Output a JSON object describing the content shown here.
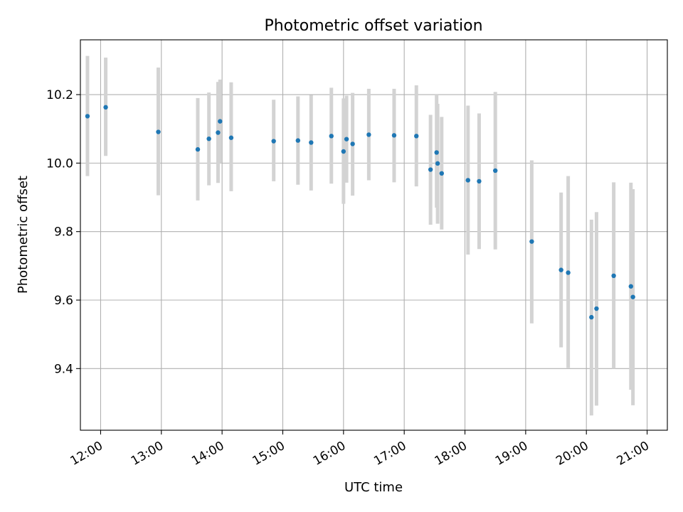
{
  "chart_data": {
    "type": "scatter",
    "title": "Photometric offset variation",
    "xlabel": "UTC time",
    "ylabel": "Photometric offset",
    "grid": true,
    "x_unit": "UTC hh:mm",
    "xlim": [
      "11:40",
      "21:20"
    ],
    "ylim": [
      9.22,
      10.36
    ],
    "x_ticks": [
      "12:00",
      "13:00",
      "14:00",
      "15:00",
      "16:00",
      "17:00",
      "18:00",
      "19:00",
      "20:00",
      "21:00"
    ],
    "y_ticks": [
      9.4,
      9.6,
      9.8,
      10.0,
      10.2
    ],
    "y_tick_labels": [
      "9.4",
      "9.6",
      "9.8",
      "10.0",
      "10.2"
    ],
    "colors": {
      "point": "#1f77b4",
      "errorbar": "#d3d3d3",
      "grid": "#b0b0b0"
    },
    "series": [
      {
        "points": [
          {
            "x": "11:47",
            "y": 10.137,
            "lo": 9.962,
            "hi": 10.313
          },
          {
            "x": "12:05",
            "y": 10.163,
            "lo": 10.021,
            "hi": 10.308
          },
          {
            "x": "12:57",
            "y": 10.091,
            "lo": 9.906,
            "hi": 10.279
          },
          {
            "x": "13:36",
            "y": 10.04,
            "lo": 9.891,
            "hi": 10.19
          },
          {
            "x": "13:47",
            "y": 10.071,
            "lo": 9.935,
            "hi": 10.206
          },
          {
            "x": "13:56",
            "y": 10.089,
            "lo": 9.942,
            "hi": 10.237
          },
          {
            "x": "13:58",
            "y": 10.122,
            "lo": 10.0,
            "hi": 10.244
          },
          {
            "x": "14:09",
            "y": 10.074,
            "lo": 9.918,
            "hi": 10.236
          },
          {
            "x": "14:51",
            "y": 10.064,
            "lo": 9.947,
            "hi": 10.185
          },
          {
            "x": "15:15",
            "y": 10.066,
            "lo": 9.937,
            "hi": 10.195
          },
          {
            "x": "15:28",
            "y": 10.06,
            "lo": 9.92,
            "hi": 10.199
          },
          {
            "x": "15:48",
            "y": 10.079,
            "lo": 9.94,
            "hi": 10.22
          },
          {
            "x": "16:00",
            "y": 10.034,
            "lo": 9.881,
            "hi": 10.189
          },
          {
            "x": "16:03",
            "y": 10.07,
            "lo": 9.943,
            "hi": 10.197
          },
          {
            "x": "16:09",
            "y": 10.056,
            "lo": 9.905,
            "hi": 10.205
          },
          {
            "x": "16:25",
            "y": 10.083,
            "lo": 9.95,
            "hi": 10.217
          },
          {
            "x": "16:50",
            "y": 10.081,
            "lo": 9.944,
            "hi": 10.217
          },
          {
            "x": "17:12",
            "y": 10.079,
            "lo": 9.932,
            "hi": 10.227
          },
          {
            "x": "17:26",
            "y": 9.981,
            "lo": 9.82,
            "hi": 10.141
          },
          {
            "x": "17:32",
            "y": 10.031,
            "lo": 9.87,
            "hi": 10.2
          },
          {
            "x": "17:33",
            "y": 9.999,
            "lo": 9.823,
            "hi": 10.173
          },
          {
            "x": "17:37",
            "y": 9.97,
            "lo": 9.806,
            "hi": 10.135
          },
          {
            "x": "18:03",
            "y": 9.95,
            "lo": 9.733,
            "hi": 10.168
          },
          {
            "x": "18:14",
            "y": 9.947,
            "lo": 9.749,
            "hi": 10.145
          },
          {
            "x": "18:30",
            "y": 9.978,
            "lo": 9.748,
            "hi": 10.208
          },
          {
            "x": "19:06",
            "y": 9.771,
            "lo": 9.532,
            "hi": 10.008
          },
          {
            "x": "19:35",
            "y": 9.688,
            "lo": 9.462,
            "hi": 9.914
          },
          {
            "x": "19:42",
            "y": 9.68,
            "lo": 9.402,
            "hi": 9.962
          },
          {
            "x": "20:05",
            "y": 9.55,
            "lo": 9.263,
            "hi": 9.835
          },
          {
            "x": "20:10",
            "y": 9.575,
            "lo": 9.292,
            "hi": 9.857
          },
          {
            "x": "20:27",
            "y": 9.671,
            "lo": 9.4,
            "hi": 9.944
          },
          {
            "x": "20:44",
            "y": 9.64,
            "lo": 9.338,
            "hi": 9.943
          },
          {
            "x": "20:46",
            "y": 9.609,
            "lo": 9.293,
            "hi": 9.924
          }
        ]
      }
    ]
  }
}
